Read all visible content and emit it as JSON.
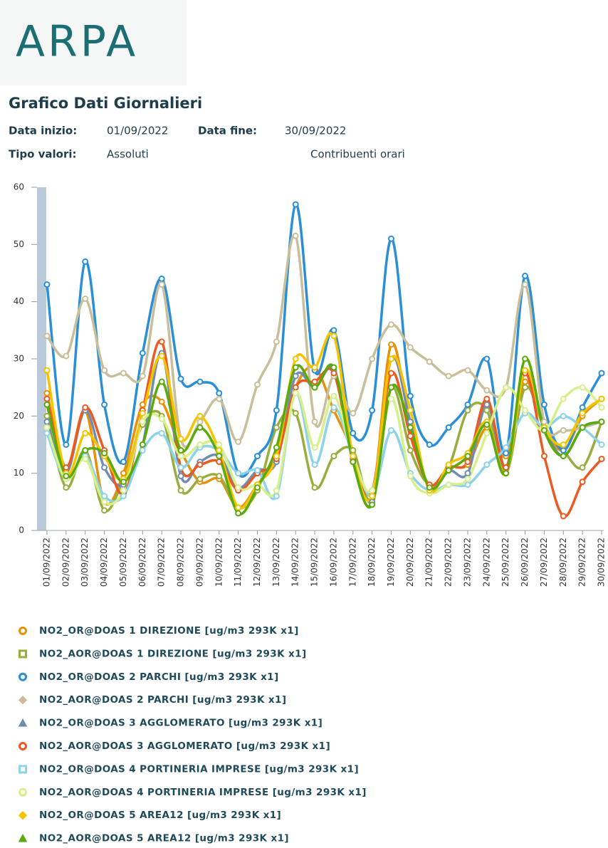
{
  "header": {
    "logo": "ARPA",
    "title": "Grafico Dati Giornalieri",
    "start_label": "Data inizio:",
    "start_value": "01/09/2022",
    "end_label": "Data fine:",
    "end_value": "30/09/2022",
    "type_label": "Tipo valori:",
    "type_value": "Assoluti",
    "extra": "Contribuenti orari"
  },
  "chart_data": {
    "type": "line",
    "categories": [
      "01/09/2022",
      "02/09/2022",
      "03/09/2022",
      "04/09/2022",
      "05/09/2022",
      "06/09/2022",
      "07/09/2022",
      "08/09/2022",
      "09/09/2022",
      "10/09/2022",
      "11/09/2022",
      "12/09/2022",
      "13/09/2022",
      "14/09/2022",
      "15/09/2022",
      "16/09/2022",
      "17/09/2022",
      "18/09/2022",
      "19/09/2022",
      "20/09/2022",
      "21/09/2022",
      "22/09/2022",
      "23/09/2022",
      "24/09/2022",
      "25/09/2022",
      "26/09/2022",
      "27/09/2022",
      "28/09/2022",
      "29/09/2022",
      "30/09/2022"
    ],
    "ylim": [
      0,
      60
    ],
    "yticks": [
      0,
      10,
      20,
      30,
      40,
      50,
      60
    ],
    "series": [
      {
        "name": "NO2_OR@DOAS 1 DIREZIONE [ug/m3 293K x1]",
        "color": "#e8900c",
        "symbol": "circle",
        "values": [
          24,
          11,
          21,
          5,
          10,
          22,
          22.5,
          14,
          8.5,
          9,
          4,
          8,
          13,
          25,
          28.5,
          21,
          14,
          6,
          32.5,
          18,
          7.5,
          11,
          11.5,
          18,
          13,
          26,
          18,
          14,
          20,
          23
        ]
      },
      {
        "name": "NO2_AOR@DOAS 1 DIREZIONE [ug/m3 293K x1]",
        "color": "#9aad3c",
        "symbol": "square",
        "values": [
          20,
          7.5,
          14,
          3.5,
          9,
          18.5,
          20,
          7,
          9,
          9.5,
          4,
          7,
          18,
          20.5,
          7.5,
          13,
          14,
          5,
          25,
          14,
          8,
          11,
          21,
          21,
          10,
          25,
          18,
          14,
          11,
          19
        ]
      },
      {
        "name": "NO2_OR@DOAS 2 PARCHI [ug/m3 293K x1]",
        "color": "#2a8fd6",
        "symbol": "circle",
        "values": [
          43,
          15,
          47,
          22,
          12,
          31,
          44,
          26.5,
          26,
          24,
          10,
          13,
          21,
          57,
          28,
          35,
          17,
          21,
          51,
          23.5,
          15,
          18,
          22,
          30,
          13.5,
          44.5,
          22,
          14,
          21.5,
          27.5
        ]
      },
      {
        "name": "NO2_AOR@DOAS 2 PARCHI [ug/m3 293K x1]",
        "color": "#c8bf9a",
        "symbol": "diamond",
        "values": [
          34,
          30.5,
          40.5,
          28,
          27.5,
          27,
          43,
          16,
          19,
          23,
          15.5,
          25.5,
          33,
          51.5,
          19,
          27,
          20.5,
          30,
          36,
          32,
          29.5,
          27,
          28,
          24.5,
          25,
          43,
          19,
          17.5,
          18,
          19
        ]
      },
      {
        "name": "NO2_OR@DOAS 3 AGGLOMERATO [ug/m3 293K x1]",
        "color": "#6f8db3",
        "symbol": "triangle",
        "values": [
          19,
          10,
          21,
          11,
          8,
          15,
          31,
          9.5,
          12,
          13,
          7.5,
          10.5,
          12,
          27,
          25,
          28,
          12,
          5,
          30,
          19,
          7.5,
          10.5,
          10,
          22,
          11,
          28,
          18,
          13,
          18,
          19
        ]
      },
      {
        "name": "NO2_AOR@DOAS 3 AGGLOMERATO [ug/m3 293K x1]",
        "color": "#ec5a24",
        "symbol": "circle",
        "values": [
          23,
          11,
          21.5,
          14,
          6.5,
          21,
          33,
          11,
          11.5,
          12,
          7,
          10,
          12.5,
          25,
          26,
          27.5,
          12.5,
          7,
          27.5,
          16.5,
          8,
          11,
          12,
          23,
          11,
          27.5,
          13,
          2.5,
          8.5,
          12.5
        ]
      },
      {
        "name": "NO2_OR@DOAS 4 PORTINERIA IMPRESE [ug/m3 293K x1]",
        "color": "#8cd3ea",
        "symbol": "square",
        "values": [
          17,
          9,
          13,
          6,
          6,
          14,
          17,
          11,
          14.5,
          14,
          10,
          10.5,
          6,
          24,
          11.5,
          21.5,
          13,
          6,
          17.5,
          10,
          7,
          8,
          8,
          11.5,
          14.5,
          20.5,
          18,
          20,
          18,
          15
        ]
      },
      {
        "name": "NO2_AOR@DOAS 4 PORTINERIA IMPRESE [ug/m3 293K x1]",
        "color": "#d6f08a",
        "symbol": "circle",
        "values": [
          18,
          9,
          12.5,
          5,
          7,
          19,
          19.5,
          13,
          15,
          15,
          7.5,
          8,
          7,
          24,
          14.5,
          23.5,
          13,
          7,
          23,
          9.5,
          6.5,
          8,
          9,
          17,
          25,
          21,
          17.5,
          23,
          25,
          21.5
        ]
      },
      {
        "name": "NO2_OR@DOAS 5 AREA12 [ug/m3 293K x1]",
        "color": "#f5c400",
        "symbol": "diamond",
        "values": [
          28,
          10,
          17,
          13,
          9,
          20.5,
          30.5,
          16,
          20,
          14,
          4,
          8,
          13,
          30,
          28.5,
          34,
          13,
          6,
          30,
          21,
          7,
          11.5,
          13.5,
          19,
          10,
          28,
          18,
          15,
          20.5,
          23
        ]
      },
      {
        "name": "NO2_AOR@DOAS 5 AREA12 [ug/m3 293K x1]",
        "color": "#5aaa0a",
        "symbol": "triangle",
        "values": [
          22,
          9.5,
          14,
          13.5,
          8.5,
          15,
          26,
          14,
          18,
          13,
          3,
          7.5,
          14.5,
          28.5,
          25,
          28.5,
          12,
          4.5,
          25,
          18,
          7.5,
          10.5,
          13,
          18.5,
          10,
          30,
          17.5,
          13,
          18,
          19
        ]
      }
    ]
  }
}
